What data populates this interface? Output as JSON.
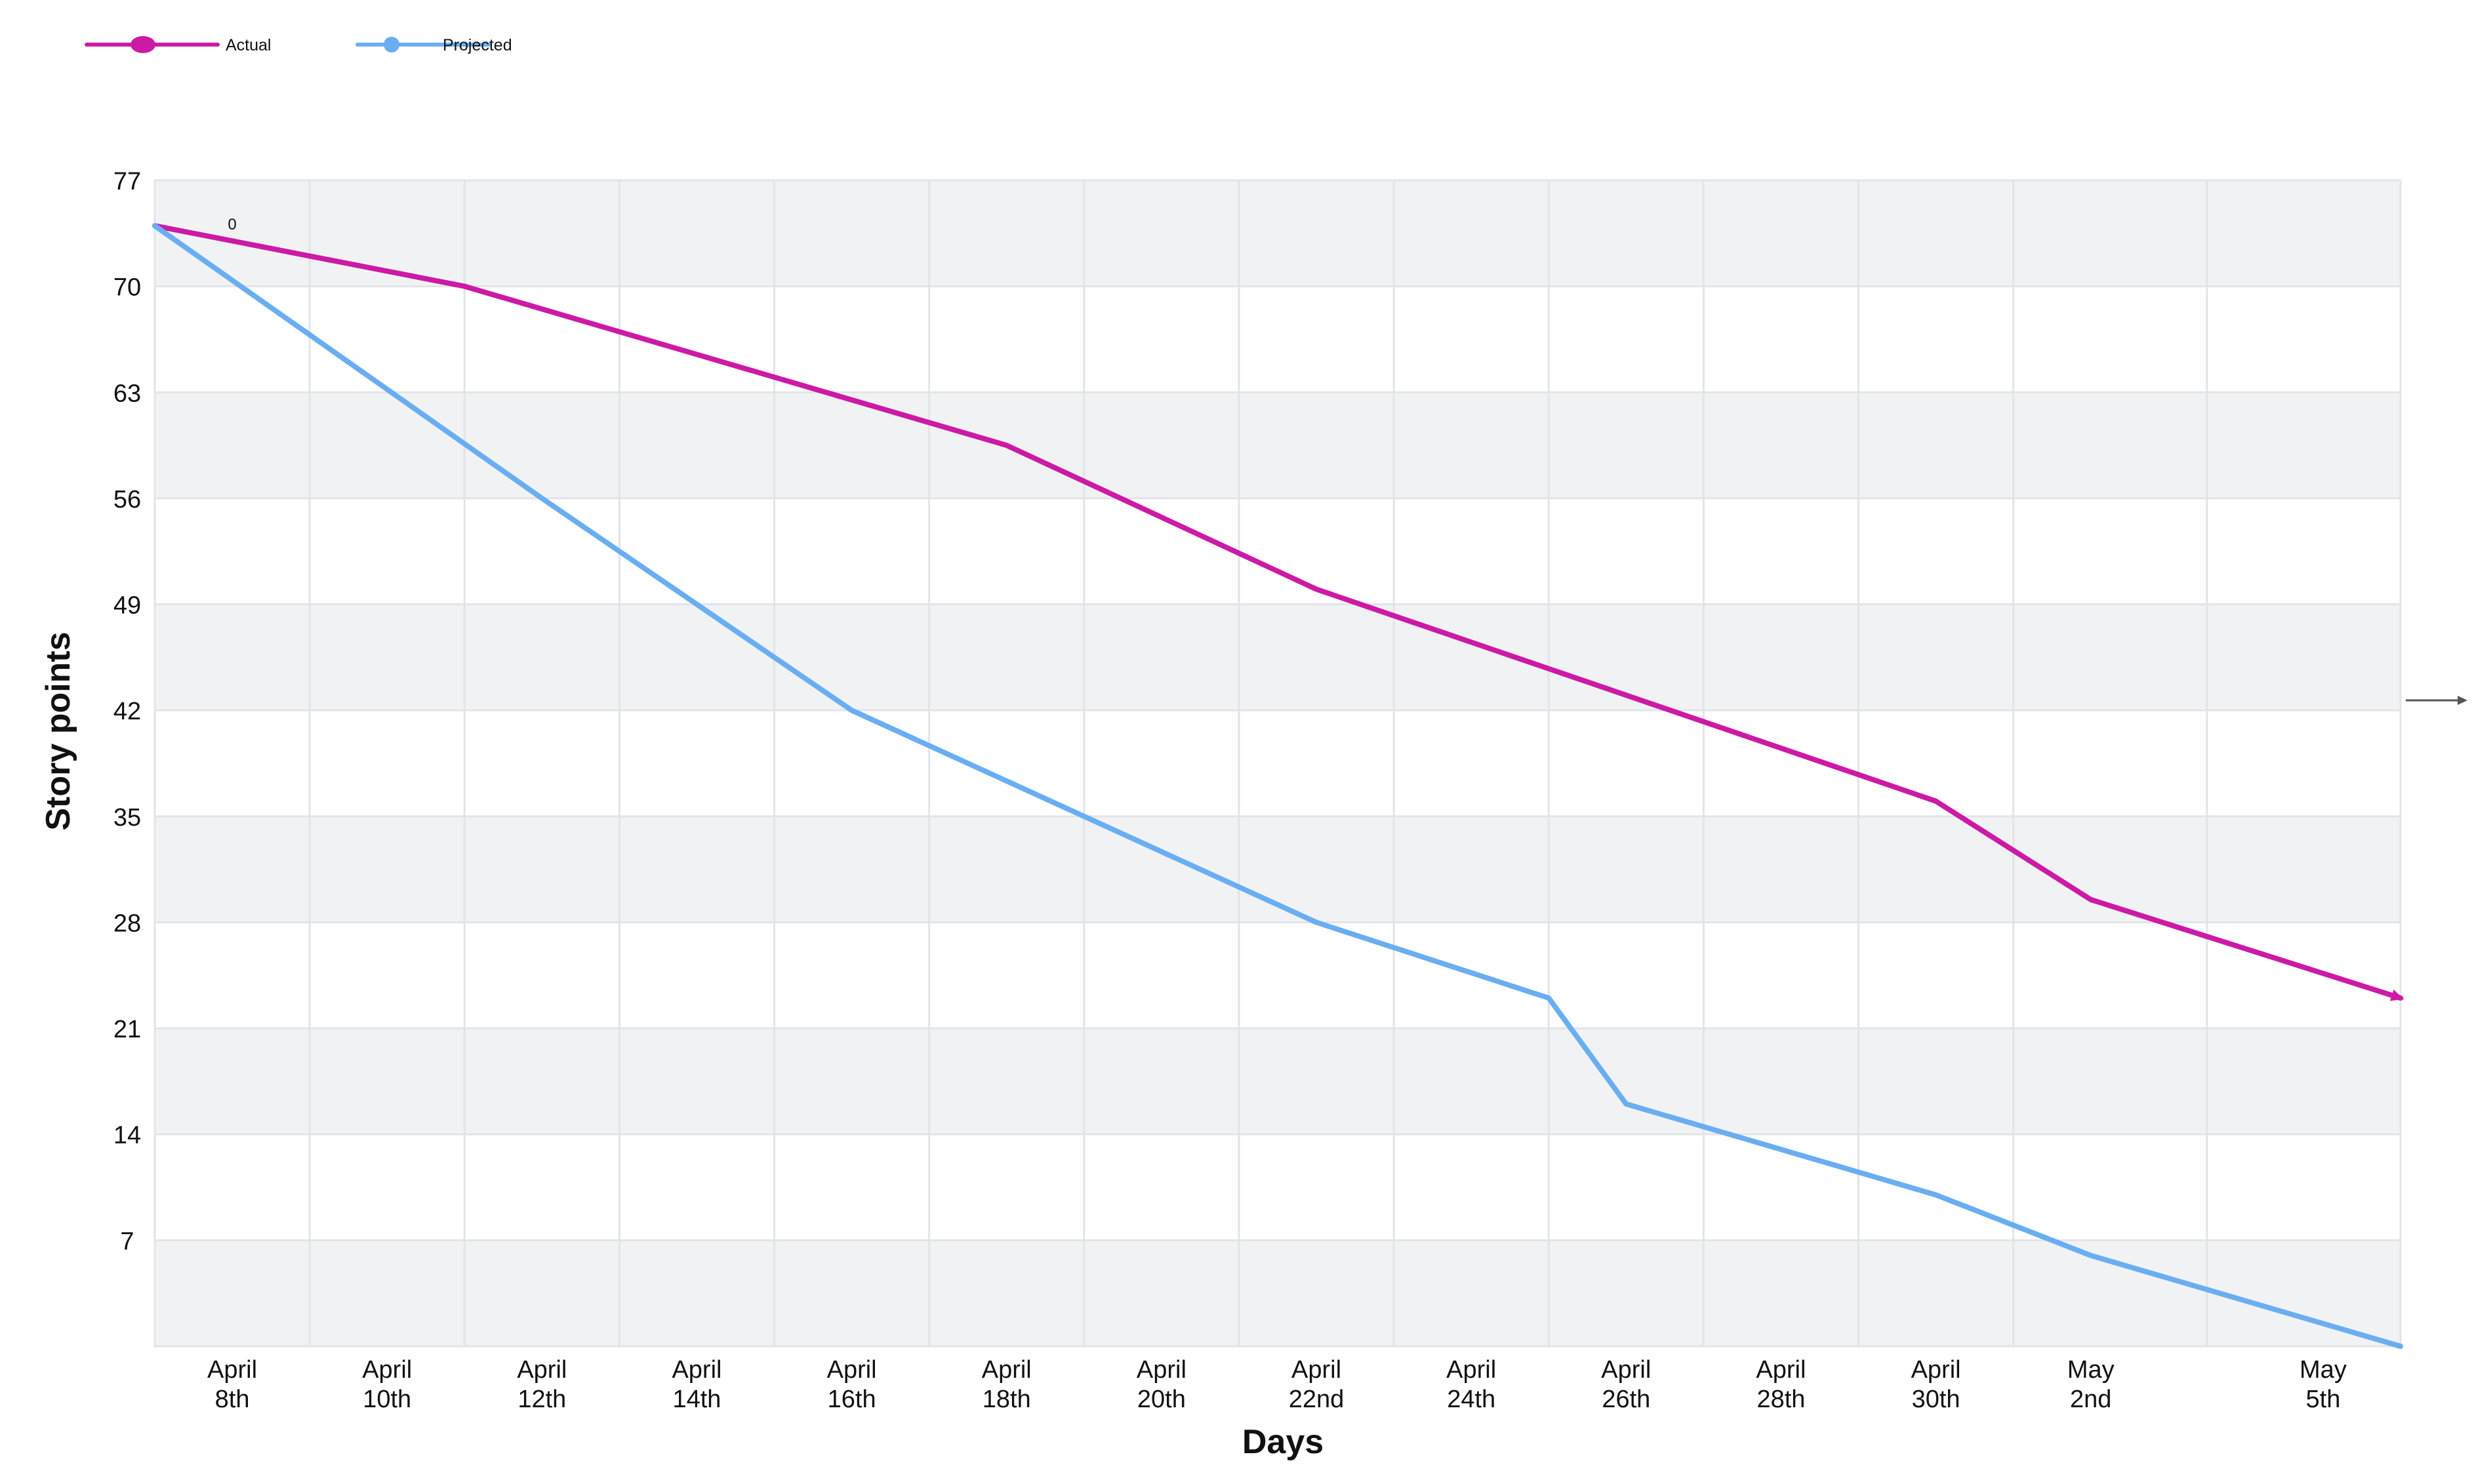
{
  "chart_data": {
    "type": "line",
    "xlabel": "Days",
    "ylabel": "Story points",
    "ylim": [
      0,
      77
    ],
    "yticks": [
      7,
      14,
      21,
      28,
      35,
      42,
      49,
      56,
      63,
      70,
      77
    ],
    "x_unit": "days",
    "x_start": "2024-04-07",
    "x_end": "2024-05-06",
    "xticks": [
      {
        "date": "2024-04-08",
        "lines": [
          "April",
          "8th"
        ]
      },
      {
        "date": "2024-04-10",
        "lines": [
          "April",
          "10th"
        ]
      },
      {
        "date": "2024-04-12",
        "lines": [
          "April",
          "12th"
        ]
      },
      {
        "date": "2024-04-14",
        "lines": [
          "April",
          "14th"
        ]
      },
      {
        "date": "2024-04-16",
        "lines": [
          "April",
          "16th"
        ]
      },
      {
        "date": "2024-04-18",
        "lines": [
          "April",
          "18th"
        ]
      },
      {
        "date": "2024-04-20",
        "lines": [
          "April",
          "20th"
        ]
      },
      {
        "date": "2024-04-22",
        "lines": [
          "April",
          "22nd"
        ]
      },
      {
        "date": "2024-04-24",
        "lines": [
          "April",
          "24th"
        ]
      },
      {
        "date": "2024-04-26",
        "lines": [
          "April",
          "26th"
        ]
      },
      {
        "date": "2024-04-28",
        "lines": [
          "April",
          "28th"
        ]
      },
      {
        "date": "2024-04-30",
        "lines": [
          "April",
          "30th"
        ]
      },
      {
        "date": "2024-05-02",
        "lines": [
          "May",
          "2nd"
        ]
      },
      {
        "date": "2024-05-05",
        "lines": [
          "May",
          "5th"
        ]
      }
    ],
    "grid": true,
    "legend_position": "top-left",
    "series": [
      {
        "name": "Actual",
        "color": "#cc1aa6",
        "points": [
          {
            "date": "2024-04-07",
            "y": 74
          },
          {
            "date": "2024-04-11",
            "y": 70
          },
          {
            "date": "2024-04-18",
            "y": 59.5
          },
          {
            "date": "2024-04-22",
            "y": 50
          },
          {
            "date": "2024-04-30",
            "y": 36
          },
          {
            "date": "2024-05-02",
            "y": 29.5
          },
          {
            "date": "2024-05-06",
            "y": 23
          }
        ]
      },
      {
        "name": "Projected",
        "color": "#6aaef2",
        "points": [
          {
            "date": "2024-04-07",
            "y": 74
          },
          {
            "date": "2024-04-12",
            "y": 56
          },
          {
            "date": "2024-04-16",
            "y": 42
          },
          {
            "date": "2024-04-22",
            "y": 28
          },
          {
            "date": "2024-04-25",
            "y": 23
          },
          {
            "date": "2024-04-26",
            "y": 16
          },
          {
            "date": "2024-04-30",
            "y": 10
          },
          {
            "date": "2024-05-02",
            "y": 6
          },
          {
            "date": "2024-05-06",
            "y": 0
          }
        ]
      }
    ],
    "annotations": [
      {
        "text": "0",
        "date": "2024-04-08",
        "y": 73.5
      }
    ]
  }
}
